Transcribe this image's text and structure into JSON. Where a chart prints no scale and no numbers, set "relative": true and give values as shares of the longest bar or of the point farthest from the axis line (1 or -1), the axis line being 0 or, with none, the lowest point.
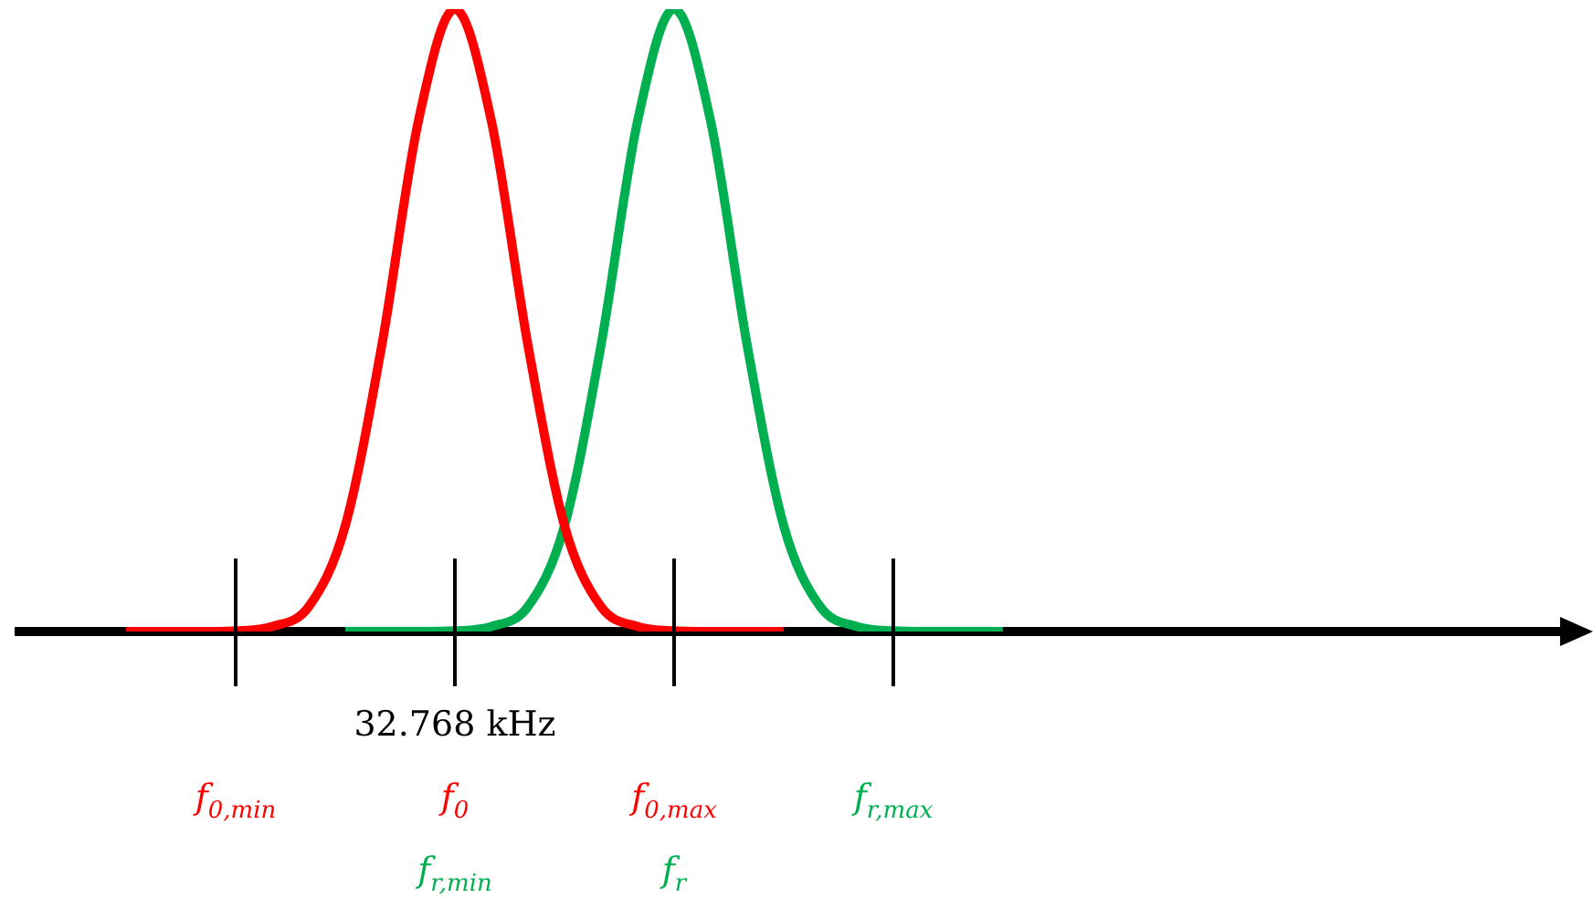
{
  "chart_data": {
    "type": "line",
    "relative": true,
    "legend": false,
    "categories": [
      null,
      null,
      null,
      "f$_{0,min}$",
      null,
      null,
      null,
      null,
      null,
      "f$_{0}$",
      null,
      null,
      null,
      null,
      null,
      "f$_{0,max}$",
      null,
      null,
      null,
      null,
      null,
      "f$_{r,max}$",
      null,
      null,
      null
    ],
    "series": [
      {
        "color": "#ff0000",
        "values": [
          0,
          0,
          0,
          0.001,
          0.008,
          0.04,
          0.17,
          0.46,
          0.82,
          1,
          0.82,
          0.46,
          0.17,
          0.04,
          0.008,
          0.001,
          0,
          0,
          0,
          null,
          null,
          null,
          null,
          null,
          null
        ]
      },
      {
        "color": "#00b050",
        "values": [
          null,
          null,
          null,
          null,
          null,
          null,
          0,
          0,
          0,
          0.001,
          0.008,
          0.04,
          0.17,
          0.46,
          0.82,
          1,
          0.82,
          0.46,
          0.17,
          0.04,
          0.008,
          0.001,
          0,
          0,
          0
        ]
      }
    ],
    "annotations": [
      "32.768 kHz",
      "f$_{r,min}$",
      "f$_{r}$"
    ]
  }
}
